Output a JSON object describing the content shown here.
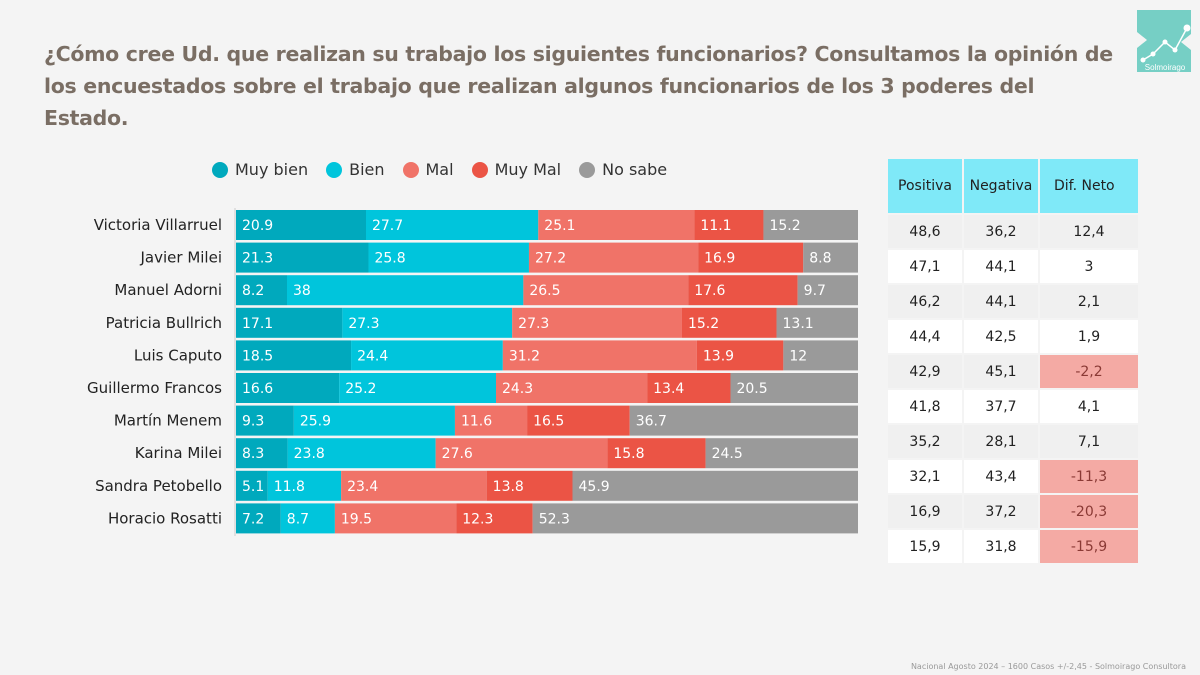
{
  "title": "¿Cómo cree Ud. que realizan su trabajo los siguientes funcionarios? Consultamos la opinión de los encuestados sobre el trabajo que realizan algunos funcionarios de los 3 poderes del Estado.",
  "logo_text": "Solmoirago",
  "footer": "Nacional Agosto 2024 – 1600 Casos +/-2,45 - Solmoirago Consultora",
  "chart_data": {
    "type": "bar",
    "orientation": "horizontal",
    "stacked": true,
    "legend_position": "top",
    "categories": [
      "Victoria Villarruel",
      "Javier Milei",
      "Manuel Adorni",
      "Patricia Bullrich",
      "Luis Caputo",
      "Guillermo Francos",
      "Martín Menem",
      "Karina Milei",
      "Sandra Petobello",
      "Horacio Rosatti"
    ],
    "series": [
      {
        "name": "Muy bien",
        "color": "#00a9bd",
        "values": [
          20.9,
          21.3,
          8.2,
          17.1,
          18.5,
          16.6,
          9.3,
          8.3,
          5.1,
          7.2
        ]
      },
      {
        "name": "Bien",
        "color": "#00c5dc",
        "values": [
          27.7,
          25.8,
          38,
          27.3,
          24.4,
          25.2,
          25.9,
          23.8,
          11.8,
          8.7
        ]
      },
      {
        "name": "Mal",
        "color": "#f07368",
        "values": [
          25.1,
          27.2,
          26.5,
          27.3,
          31.2,
          24.3,
          11.6,
          27.6,
          23.4,
          19.5
        ]
      },
      {
        "name": "Muy Mal",
        "color": "#eb5445",
        "values": [
          11.1,
          16.9,
          17.6,
          15.2,
          13.9,
          13.4,
          16.5,
          15.8,
          13.8,
          12.3
        ]
      },
      {
        "name": "No sabe",
        "color": "#9a9a9a",
        "values": [
          15.2,
          8.8,
          9.7,
          13.1,
          12,
          20.5,
          36.7,
          24.5,
          45.9,
          52.3
        ]
      }
    ]
  },
  "table": {
    "headers": [
      "Positiva",
      "Negativa",
      "Dif. Neto"
    ],
    "rows": [
      [
        "48,6",
        "36,2",
        "12,4"
      ],
      [
        "47,1",
        "44,1",
        "3"
      ],
      [
        "46,2",
        "44,1",
        "2,1"
      ],
      [
        "44,4",
        "42,5",
        "1,9"
      ],
      [
        "42,9",
        "45,1",
        "-2,2"
      ],
      [
        "41,8",
        "37,7",
        "4,1"
      ],
      [
        "35,2",
        "28,1",
        "7,1"
      ],
      [
        "32,1",
        "43,4",
        "-11,3"
      ],
      [
        "16,9",
        "37,2",
        "-20,3"
      ],
      [
        "15,9",
        "31,8",
        "-15,9"
      ]
    ],
    "negative_color": "#f4aaa4",
    "header_color": "#7fe9f8"
  }
}
